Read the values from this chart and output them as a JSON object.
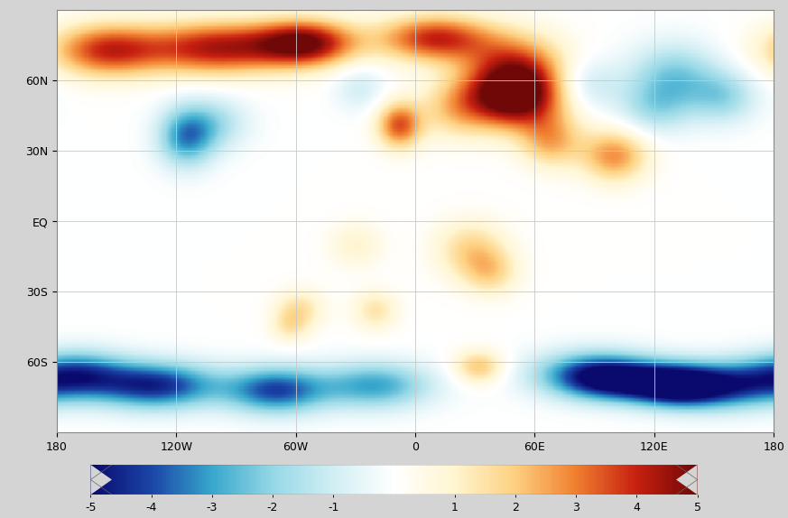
{
  "title": "",
  "colorbar_ticks": [
    -5,
    -4,
    -3,
    -2,
    -1,
    1,
    2,
    3,
    4,
    5
  ],
  "colorbar_ticklabels": [
    "-5",
    "-4",
    "-3",
    "-2",
    "-1",
    "1",
    "2",
    "3",
    "4",
    "5"
  ],
  "vmin": -5,
  "vmax": 5,
  "xticks": [
    -180,
    -120,
    -60,
    0,
    60,
    120,
    180
  ],
  "xticklabels": [
    "180",
    "120W",
    "60W",
    "0",
    "60E",
    "120E",
    "180"
  ],
  "yticks": [
    -60,
    -30,
    0,
    30,
    60
  ],
  "yticklabels": [
    "60S",
    "30S",
    "EQ",
    "30N",
    "60N"
  ],
  "grid_color": "#c8c8c8",
  "outer_bg": "#d4d4d4",
  "map_bg": "#ffffff",
  "colormap_colors": [
    "#0A0A6E",
    "#1A46A8",
    "#38A8CC",
    "#96D8E6",
    "#D2EEF4",
    "#FFFFFF",
    "#FFF5D0",
    "#FDD080",
    "#F08030",
    "#C82010",
    "#700808"
  ],
  "blobs_warm": [
    {
      "lon": -155,
      "lat": 73,
      "amp": 3.8,
      "sl": 20,
      "sg": 8
    },
    {
      "lon": -100,
      "lat": 74,
      "amp": 4.2,
      "sl": 25,
      "sg": 8
    },
    {
      "lon": -55,
      "lat": 76,
      "amp": 4.8,
      "sl": 18,
      "sg": 7
    },
    {
      "lon": 10,
      "lat": 78,
      "amp": 4.0,
      "sl": 20,
      "sg": 7
    },
    {
      "lon": 50,
      "lat": 67,
      "amp": 2.8,
      "sl": 18,
      "sg": 10
    },
    {
      "lon": 55,
      "lat": 53,
      "amp": 3.2,
      "sl": 18,
      "sg": 10
    },
    {
      "lon": -8,
      "lat": 41,
      "amp": 3.5,
      "sl": 8,
      "sg": 7
    },
    {
      "lon": 20,
      "lat": 48,
      "amp": 1.8,
      "sl": 13,
      "sg": 9
    },
    {
      "lon": 45,
      "lat": 53,
      "amp": 2.5,
      "sl": 15,
      "sg": 9
    },
    {
      "lon": 68,
      "lat": 34,
      "amp": 2.2,
      "sl": 11,
      "sg": 8
    },
    {
      "lon": 100,
      "lat": 28,
      "amp": 2.8,
      "sl": 12,
      "sg": 8
    },
    {
      "lon": 28,
      "lat": -12,
      "amp": 1.8,
      "sl": 13,
      "sg": 9
    },
    {
      "lon": 38,
      "lat": -22,
      "amp": 1.5,
      "sl": 10,
      "sg": 7
    },
    {
      "lon": -58,
      "lat": -37,
      "amp": 1.5,
      "sl": 9,
      "sg": 6
    },
    {
      "lon": -63,
      "lat": -45,
      "amp": 1.2,
      "sl": 7,
      "sg": 5
    },
    {
      "lon": 32,
      "lat": -62,
      "amp": 2.2,
      "sl": 9,
      "sg": 5
    },
    {
      "lon": -30,
      "lat": -10,
      "amp": 1.0,
      "sl": 10,
      "sg": 7
    },
    {
      "lon": -20,
      "lat": -38,
      "amp": 1.5,
      "sl": 8,
      "sg": 6
    }
  ],
  "blobs_cool": [
    {
      "lon": -115,
      "lat": 36,
      "amp": -3.2,
      "sl": 10,
      "sg": 9
    },
    {
      "lon": -100,
      "lat": 42,
      "amp": -1.5,
      "sl": 12,
      "sg": 8
    },
    {
      "lon": 130,
      "lat": 62,
      "amp": -2.2,
      "sl": 16,
      "sg": 10
    },
    {
      "lon": 155,
      "lat": 53,
      "amp": -1.8,
      "sl": 12,
      "sg": 8
    },
    {
      "lon": 120,
      "lat": 48,
      "amp": -1.5,
      "sl": 13,
      "sg": 8
    },
    {
      "lon": -28,
      "lat": 57,
      "amp": -1.0,
      "sl": 9,
      "sg": 7
    },
    {
      "lon": 85,
      "lat": 58,
      "amp": -1.5,
      "sl": 12,
      "sg": 8
    },
    {
      "lon": -130,
      "lat": -70,
      "amp": -4.5,
      "sl": 22,
      "sg": 7
    },
    {
      "lon": -70,
      "lat": -72,
      "amp": -4.0,
      "sl": 18,
      "sg": 7
    },
    {
      "lon": -20,
      "lat": -70,
      "amp": -3.0,
      "sl": 20,
      "sg": 7
    },
    {
      "lon": 90,
      "lat": -65,
      "amp": -3.5,
      "sl": 22,
      "sg": 7
    },
    {
      "lon": 155,
      "lat": -70,
      "amp": -4.0,
      "sl": 22,
      "sg": 7
    },
    {
      "lon": -170,
      "lat": -65,
      "amp": -3.5,
      "sl": 18,
      "sg": 7
    },
    {
      "lon": 130,
      "lat": -70,
      "amp": -4.5,
      "sl": 16,
      "sg": 6
    },
    {
      "lon": 100,
      "lat": -68,
      "amp": -3.0,
      "sl": 18,
      "sg": 6
    }
  ]
}
